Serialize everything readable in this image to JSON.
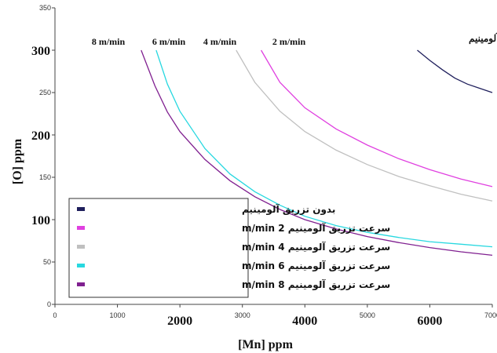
{
  "chart_data": {
    "type": "line",
    "xlabel": "[Mn] ppm",
    "ylabel": "[O] ppm",
    "xlim": [
      0,
      7000
    ],
    "ylim": [
      0,
      350
    ],
    "x_ticks": [
      {
        "value": 0,
        "label": "0",
        "major": false
      },
      {
        "value": 1000,
        "label": "1000",
        "major": false
      },
      {
        "value": 2000,
        "label": "2000",
        "major": true
      },
      {
        "value": 3000,
        "label": "3000",
        "major": false
      },
      {
        "value": 4000,
        "label": "4000",
        "major": true
      },
      {
        "value": 5000,
        "label": "5000",
        "major": false
      },
      {
        "value": 6000,
        "label": "6000",
        "major": true
      },
      {
        "value": 7000,
        "label": "7000",
        "major": false
      }
    ],
    "y_ticks": [
      {
        "value": 0,
        "label": "0",
        "major": false
      },
      {
        "value": 50,
        "label": "50",
        "major": false
      },
      {
        "value": 100,
        "label": "100",
        "major": true
      },
      {
        "value": 150,
        "label": "150",
        "major": false
      },
      {
        "value": 200,
        "label": "200",
        "major": true
      },
      {
        "value": 250,
        "label": "250",
        "major": false
      },
      {
        "value": 300,
        "label": "300",
        "major": true
      },
      {
        "value": 350,
        "label": "350",
        "major": false
      }
    ],
    "grid": false,
    "legend_position": "bottom-left",
    "series": [
      {
        "name": "بدون تزریق آلومینیم",
        "annotation": "بدون تزریق آلومینیم",
        "color": "#1f1f5c",
        "points": [
          [
            5800,
            300
          ],
          [
            6000,
            288
          ],
          [
            6200,
            277
          ],
          [
            6400,
            267
          ],
          [
            6600,
            260
          ],
          [
            6800,
            255
          ],
          [
            7000,
            250
          ]
        ]
      },
      {
        "name": "سرعت تزریق آلومینیم 2 m/min",
        "annotation": "2 m/min",
        "color": "#e040e0",
        "points": [
          [
            3300,
            300
          ],
          [
            3600,
            262
          ],
          [
            4000,
            232
          ],
          [
            4500,
            207
          ],
          [
            5000,
            188
          ],
          [
            5500,
            172
          ],
          [
            6000,
            159
          ],
          [
            6500,
            148
          ],
          [
            7000,
            139
          ]
        ]
      },
      {
        "name": "سرعت تزریق آلومینیم 4 m/min",
        "annotation": "4 m/min",
        "color": "#c0c0c0",
        "points": [
          [
            2900,
            300
          ],
          [
            3200,
            262
          ],
          [
            3600,
            228
          ],
          [
            4000,
            204
          ],
          [
            4500,
            182
          ],
          [
            5000,
            165
          ],
          [
            5500,
            151
          ],
          [
            6000,
            140
          ],
          [
            6500,
            130
          ],
          [
            7000,
            122
          ]
        ]
      },
      {
        "name": "سرعت تزریق آلومینیم 6 m/min",
        "annotation": "6 m/min",
        "color": "#28d8e0",
        "points": [
          [
            1620,
            300
          ],
          [
            1800,
            260
          ],
          [
            2000,
            228
          ],
          [
            2400,
            184
          ],
          [
            2800,
            154
          ],
          [
            3200,
            133
          ],
          [
            3600,
            117
          ],
          [
            4000,
            104
          ],
          [
            4500,
            93
          ],
          [
            5000,
            85
          ],
          [
            5500,
            79
          ],
          [
            6000,
            74
          ],
          [
            6500,
            71
          ],
          [
            7000,
            68
          ]
        ]
      },
      {
        "name": "سرعت تزریق آلومینیم 8 m/min",
        "annotation": "8 m/min",
        "color": "#802090",
        "points": [
          [
            1380,
            300
          ],
          [
            1600,
            258
          ],
          [
            1800,
            227
          ],
          [
            2000,
            204
          ],
          [
            2400,
            171
          ],
          [
            2800,
            146
          ],
          [
            3200,
            127
          ],
          [
            3600,
            112
          ],
          [
            4000,
            100
          ],
          [
            4500,
            89
          ],
          [
            5000,
            80
          ],
          [
            5500,
            73
          ],
          [
            6000,
            67
          ],
          [
            6500,
            62
          ],
          [
            7000,
            58
          ]
        ]
      }
    ],
    "legend_entries": [
      {
        "text": "بدون تزریق آلومینیم",
        "color": "#1f1f5c"
      },
      {
        "text": "سرعت تزریق آلومینیم 2 m/min",
        "color": "#e040e0"
      },
      {
        "text": "سرعت تزریق آلومینیم 4 m/min",
        "color": "#c0c0c0"
      },
      {
        "text": "سرعت تزریق آلومینیم 6 m/min",
        "color": "#28d8e0"
      },
      {
        "text": "سرعت تزریق آلومینیم 8 m/min",
        "color": "#802090"
      }
    ]
  }
}
